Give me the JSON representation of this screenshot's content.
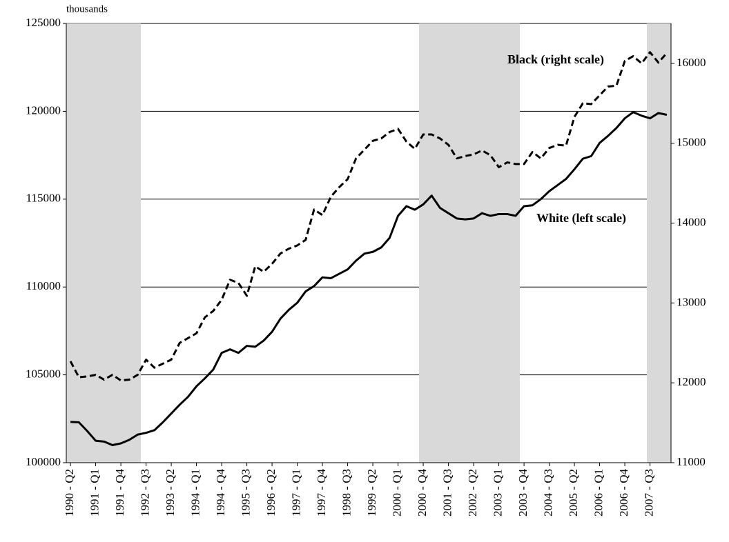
{
  "chart_data": {
    "type": "line",
    "axis_note": "thousands",
    "categories": [
      "1990 - Q2",
      null,
      null,
      "1991 - Q1",
      null,
      null,
      "1991 - Q4",
      null,
      null,
      "1992 - Q3",
      null,
      null,
      "1993 - Q2",
      null,
      null,
      "1994 - Q1",
      null,
      null,
      "1994 - Q4",
      null,
      null,
      "1995 - Q3",
      null,
      null,
      "1996 - Q2",
      null,
      null,
      "1997 - Q1",
      null,
      null,
      "1997 - Q4",
      null,
      null,
      "1998 - Q3",
      null,
      null,
      "1999 - Q2",
      null,
      null,
      "2000 - Q1",
      null,
      null,
      "2000 - Q4",
      null,
      null,
      "2001 - Q3",
      null,
      null,
      "2002 - Q2",
      null,
      null,
      "2003 - Q1",
      null,
      null,
      "2003 - Q4",
      null,
      null,
      "2004 - Q3",
      null,
      null,
      "2005 - Q2",
      null,
      null,
      "2006 - Q1",
      null,
      null,
      "2006 - Q4",
      null,
      null,
      "2007 - Q3",
      null,
      null
    ],
    "series": [
      {
        "name": "White (left scale)",
        "color": "#000000",
        "dash": false,
        "axis": "y",
        "values": [
          102320,
          102300,
          101800,
          101250,
          101200,
          101000,
          101100,
          101300,
          101600,
          101700,
          101850,
          102300,
          102800,
          103300,
          103750,
          104350,
          104800,
          105300,
          106250,
          106450,
          106250,
          106650,
          106600,
          106950,
          107450,
          108200,
          108700,
          109100,
          109750,
          110050,
          110550,
          110500,
          110750,
          111000,
          111500,
          111900,
          112000,
          112250,
          112800,
          114050,
          114600,
          114400,
          114700,
          115200,
          114500,
          114200,
          113900,
          113850,
          113900,
          114200,
          114050,
          114150,
          114150,
          114050,
          114600,
          114650,
          115000,
          115450,
          115800,
          116150,
          116700,
          117300,
          117450,
          118200,
          118600,
          119050,
          119600,
          119950,
          119750,
          119600,
          119900,
          119800
        ]
      },
      {
        "name": "Black (right scale)",
        "color": "#000000",
        "dash": true,
        "axis": "y2",
        "values": [
          12270,
          12070,
          12080,
          12100,
          12040,
          12100,
          12030,
          12040,
          12100,
          12290,
          12190,
          12240,
          12290,
          12500,
          12560,
          12620,
          12820,
          12900,
          13040,
          13290,
          13250,
          13090,
          13460,
          13390,
          13490,
          13620,
          13680,
          13720,
          13790,
          14170,
          14100,
          14330,
          14450,
          14550,
          14810,
          14920,
          15030,
          15060,
          15140,
          15180,
          15020,
          14930,
          15110,
          15110,
          15060,
          14980,
          14810,
          14840,
          14860,
          14910,
          14850,
          14700,
          14760,
          14740,
          14740,
          14890,
          14810,
          14940,
          14980,
          14970,
          15330,
          15500,
          15490,
          15600,
          15710,
          15720,
          16030,
          16090,
          16000,
          16140,
          16010,
          16130
        ]
      }
    ],
    "ylim": [
      100000,
      125000
    ],
    "yticks": [
      100000,
      105000,
      110000,
      115000,
      120000,
      125000
    ],
    "y2lim": [
      11000,
      16500
    ],
    "y2ticks": [
      11000,
      12000,
      13000,
      14000,
      15000,
      16000
    ],
    "grid": true
  }
}
